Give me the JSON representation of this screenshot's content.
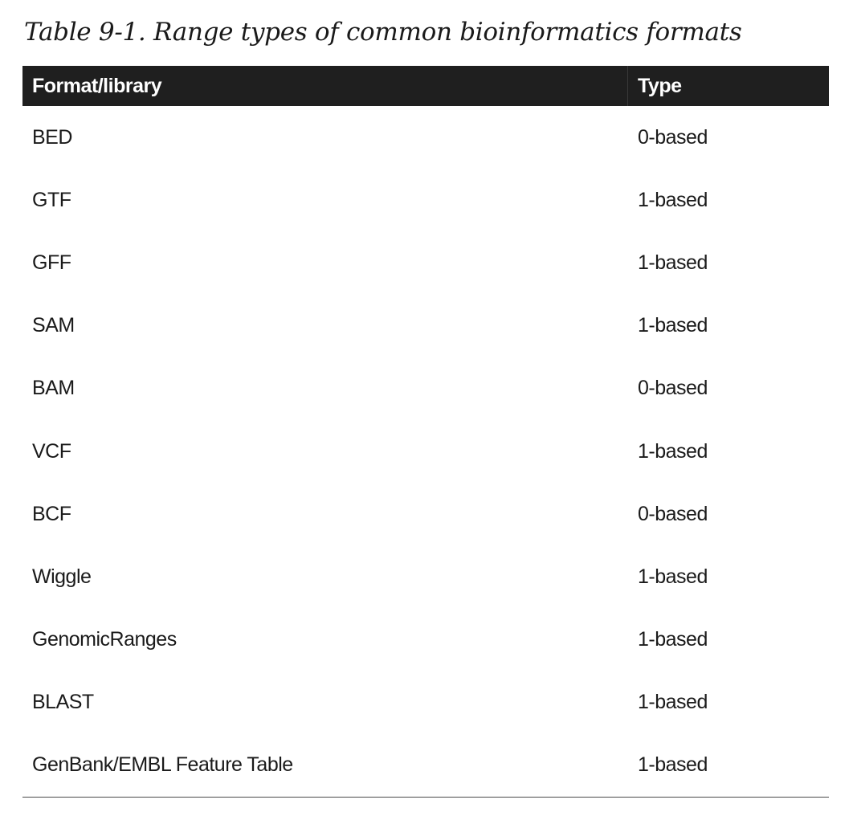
{
  "caption": "Table 9-1. Range types of common bioinformatics formats",
  "table": {
    "headers": [
      "Format/library",
      "Type"
    ],
    "rows": [
      [
        "BED",
        "0-based"
      ],
      [
        "GTF",
        "1-based"
      ],
      [
        "GFF",
        "1-based"
      ],
      [
        "SAM",
        "1-based"
      ],
      [
        "BAM",
        "0-based"
      ],
      [
        "VCF",
        "1-based"
      ],
      [
        "BCF",
        "0-based"
      ],
      [
        "Wiggle",
        "1-based"
      ],
      [
        "GenomicRanges",
        "1-based"
      ],
      [
        "BLAST",
        "1-based"
      ],
      [
        "GenBank/EMBL Feature Table",
        "1-based"
      ]
    ]
  }
}
